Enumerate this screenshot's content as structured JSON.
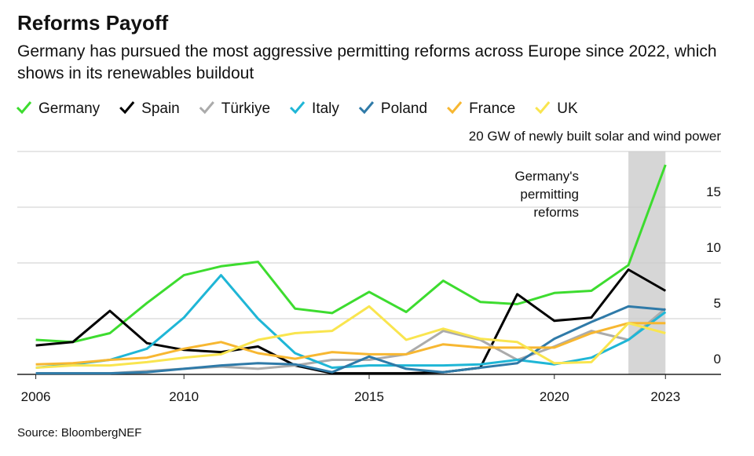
{
  "chart_data": {
    "type": "line",
    "title": "Reforms Payoff",
    "subtitle": "Germany has pursued the most aggressive permitting reforms across Europe since 2022, which shows in its renewables buildout",
    "source": "Source: BloombergNEF",
    "annotation": [
      "Germany's",
      "permitting",
      "reforms"
    ],
    "shaded_range": [
      2022,
      2023
    ],
    "x": [
      2006,
      2007,
      2008,
      2009,
      2010,
      2011,
      2012,
      2013,
      2014,
      2015,
      2016,
      2017,
      2018,
      2019,
      2020,
      2021,
      2022,
      2023
    ],
    "xlim": [
      2005.5,
      2024.5
    ],
    "xticks": [
      2006,
      2010,
      2015,
      2020,
      2023
    ],
    "ylim": [
      0,
      20
    ],
    "yticks": [
      0,
      5,
      10,
      15,
      {
        "value": 20,
        "label": "20 GW of newly built solar and wind power"
      }
    ],
    "grid": true,
    "series": [
      {
        "name": "Germany",
        "color": "#3ddc2f",
        "values": [
          3.1,
          2.9,
          3.7,
          6.4,
          8.9,
          9.7,
          10.1,
          5.9,
          5.5,
          7.4,
          5.6,
          8.4,
          6.5,
          6.3,
          7.3,
          7.5,
          9.8,
          18.8
        ]
      },
      {
        "name": "Spain",
        "color": "#000000",
        "values": [
          2.6,
          2.9,
          5.7,
          2.8,
          2.2,
          2.0,
          2.5,
          0.8,
          0.1,
          0.1,
          0.1,
          0.2,
          0.6,
          7.2,
          4.8,
          5.1,
          9.4,
          7.5
        ]
      },
      {
        "name": "Türkiye",
        "color": "#ababab",
        "values": [
          0.1,
          0.1,
          0.1,
          0.3,
          0.5,
          0.7,
          0.5,
          0.8,
          1.3,
          1.3,
          1.8,
          3.9,
          3.1,
          1.3,
          2.5,
          3.9,
          3.1,
          5.9
        ]
      },
      {
        "name": "Italy",
        "color": "#1fb6d6",
        "values": [
          0.6,
          0.9,
          1.3,
          2.3,
          5.1,
          8.9,
          5.0,
          1.9,
          0.6,
          0.8,
          0.8,
          0.8,
          0.9,
          1.3,
          0.9,
          1.5,
          3.1,
          5.6
        ]
      },
      {
        "name": "Poland",
        "color": "#2f7aa8",
        "values": [
          0.1,
          0.1,
          0.1,
          0.2,
          0.5,
          0.8,
          1.0,
          0.9,
          0.2,
          1.6,
          0.5,
          0.2,
          0.6,
          1.0,
          3.2,
          4.7,
          6.1,
          5.8
        ]
      },
      {
        "name": "France",
        "color": "#f7b731",
        "values": [
          0.9,
          1.0,
          1.3,
          1.5,
          2.3,
          2.9,
          1.9,
          1.4,
          2.0,
          1.8,
          1.8,
          2.7,
          2.4,
          2.4,
          2.4,
          3.7,
          4.6,
          4.6
        ]
      },
      {
        "name": "UK",
        "color": "#f9e54f",
        "values": [
          0.6,
          0.8,
          0.8,
          1.1,
          1.5,
          1.8,
          3.1,
          3.7,
          3.9,
          6.1,
          3.1,
          4.1,
          3.2,
          2.9,
          1.0,
          1.1,
          4.6,
          3.7
        ]
      }
    ]
  }
}
